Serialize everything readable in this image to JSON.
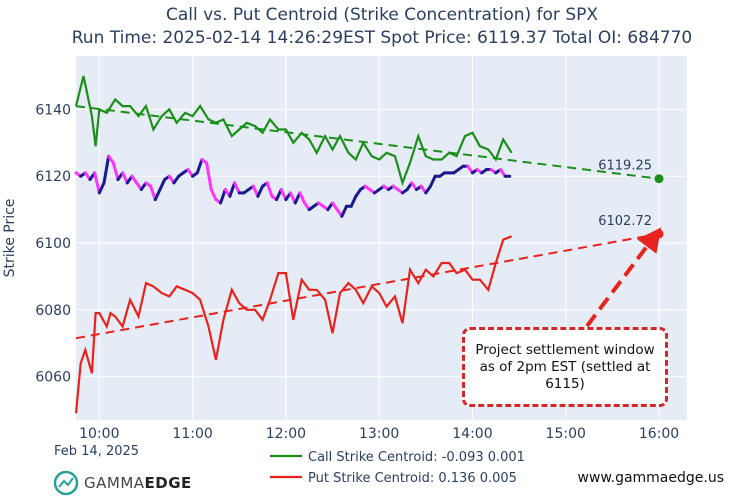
{
  "chart_data": {
    "type": "line",
    "title_line1": "Call vs. Put Centroid (Strike Concentration) for SPX",
    "title_line2": "Run Time: 2025-02-14 14:26:29EST Spot Price: 6119.37 Total OI: 684770",
    "ylabel": "Strike Price",
    "date_label": "Feb 14, 2025",
    "xlim": [
      9.75,
      16.3
    ],
    "ylim": [
      6047,
      6156
    ],
    "x_ticks": [
      10,
      11,
      12,
      13,
      14,
      15,
      16
    ],
    "x_tick_labels": [
      "10:00",
      "11:00",
      "12:00",
      "13:00",
      "14:00",
      "15:00",
      "16:00"
    ],
    "y_ticks": [
      6060,
      6080,
      6100,
      6120,
      6140
    ],
    "y_tick_labels": [
      "6060",
      "6080",
      "6100",
      "6120",
      "6140"
    ],
    "series": [
      {
        "name": "Call Strike Centroid: -0.093 0.001",
        "color": "#1a8f1a",
        "x": [
          9.75,
          9.83,
          9.92,
          9.96,
          10.0,
          10.08,
          10.17,
          10.25,
          10.33,
          10.42,
          10.5,
          10.58,
          10.67,
          10.75,
          10.83,
          10.92,
          11.0,
          11.08,
          11.17,
          11.25,
          11.33,
          11.42,
          11.5,
          11.58,
          11.67,
          11.75,
          11.83,
          11.92,
          12.0,
          12.08,
          12.17,
          12.25,
          12.33,
          12.42,
          12.5,
          12.58,
          12.67,
          12.75,
          12.83,
          12.92,
          13.0,
          13.08,
          13.17,
          13.25,
          13.33,
          13.42,
          13.5,
          13.58,
          13.67,
          13.75,
          13.83,
          13.92,
          14.0,
          14.08,
          14.17,
          14.25,
          14.33,
          14.42
        ],
        "values": [
          6141,
          6150,
          6138,
          6129,
          6140,
          6139,
          6143,
          6141,
          6141,
          6138,
          6141,
          6134,
          6138,
          6140,
          6136,
          6139,
          6138,
          6141,
          6137,
          6136,
          6137,
          6132,
          6134,
          6136,
          6135,
          6133,
          6137,
          6134,
          6134,
          6130,
          6133,
          6131,
          6127,
          6132,
          6128,
          6132,
          6127,
          6125,
          6130,
          6126,
          6125,
          6127,
          6126,
          6118,
          6124,
          6132,
          6126,
          6125,
          6125,
          6127,
          6126,
          6132,
          6133,
          6129,
          6128,
          6125,
          6131,
          6127
        ]
      },
      {
        "name": "Put Strike Centroid: 0.136 0.005",
        "color": "#e8221c",
        "x": [
          9.75,
          9.8,
          9.85,
          9.92,
          9.96,
          10.0,
          10.08,
          10.12,
          10.17,
          10.25,
          10.33,
          10.42,
          10.5,
          10.58,
          10.67,
          10.75,
          10.83,
          10.92,
          11.0,
          11.08,
          11.17,
          11.25,
          11.33,
          11.42,
          11.5,
          11.58,
          11.67,
          11.75,
          11.83,
          11.92,
          12.0,
          12.08,
          12.17,
          12.25,
          12.33,
          12.42,
          12.5,
          12.58,
          12.67,
          12.75,
          12.83,
          12.92,
          13.0,
          13.08,
          13.17,
          13.25,
          13.33,
          13.42,
          13.5,
          13.58,
          13.67,
          13.75,
          13.83,
          13.92,
          14.0,
          14.08,
          14.17,
          14.25,
          14.33,
          14.42
        ],
        "values": [
          6049,
          6064,
          6068,
          6061,
          6079,
          6079,
          6075,
          6079,
          6078,
          6075,
          6083,
          6078,
          6088,
          6087,
          6085,
          6084,
          6087,
          6086,
          6085,
          6083,
          6075,
          6065,
          6077,
          6086,
          6082,
          6080,
          6080,
          6077,
          6083,
          6091,
          6091,
          6077,
          6089,
          6086,
          6086,
          6083,
          6073,
          6085,
          6088,
          6086,
          6082,
          6087,
          6085,
          6081,
          6084,
          6076,
          6092,
          6088,
          6092,
          6090,
          6094,
          6094,
          6091,
          6092,
          6089,
          6089,
          6086,
          6094,
          6101,
          6102
        ]
      },
      {
        "name": "Spot Price",
        "colors": [
          "#1a1a8c",
          "#ff33ff"
        ],
        "x": [
          9.75,
          9.8,
          9.85,
          9.9,
          9.95,
          10.0,
          10.05,
          10.1,
          10.15,
          10.2,
          10.25,
          10.3,
          10.35,
          10.4,
          10.45,
          10.5,
          10.55,
          10.6,
          10.65,
          10.7,
          10.75,
          10.8,
          10.85,
          10.9,
          10.95,
          11.0,
          11.05,
          11.1,
          11.15,
          11.2,
          11.25,
          11.3,
          11.35,
          11.4,
          11.45,
          11.5,
          11.55,
          11.6,
          11.65,
          11.7,
          11.75,
          11.8,
          11.85,
          11.9,
          11.95,
          12.0,
          12.05,
          12.1,
          12.15,
          12.2,
          12.25,
          12.3,
          12.35,
          12.4,
          12.45,
          12.5,
          12.55,
          12.6,
          12.65,
          12.7,
          12.75,
          12.8,
          12.85,
          12.9,
          12.95,
          13.0,
          13.05,
          13.1,
          13.15,
          13.2,
          13.25,
          13.3,
          13.35,
          13.4,
          13.45,
          13.5,
          13.55,
          13.6,
          13.65,
          13.7,
          13.75,
          13.8,
          13.85,
          13.9,
          13.95,
          14.0,
          14.05,
          14.1,
          14.15,
          14.2,
          14.25,
          14.3,
          14.35,
          14.4
        ],
        "values": [
          6121,
          6120,
          6121,
          6119,
          6121,
          6115,
          6118,
          6126,
          6124,
          6119,
          6121,
          6118,
          6120,
          6118,
          6116,
          6118,
          6117,
          6113,
          6116,
          6119,
          6120,
          6118,
          6120,
          6121,
          6122,
          6120,
          6121,
          6125,
          6124,
          6116,
          6113,
          6112,
          6116,
          6114,
          6118,
          6115,
          6115,
          6116,
          6117,
          6114,
          6117,
          6118,
          6114,
          6113,
          6116,
          6113,
          6115,
          6112,
          6115,
          6112,
          6110,
          6111,
          6112,
          6111,
          6110,
          6112,
          6110,
          6108,
          6111,
          6111,
          6114,
          6116,
          6117,
          6116,
          6115,
          6116,
          6117,
          6116,
          6117,
          6116,
          6115,
          6116,
          6118,
          6116,
          6117,
          6115,
          6117,
          6120,
          6120,
          6121,
          6121,
          6121,
          6122,
          6123,
          6123,
          6121,
          6122,
          6121,
          6122,
          6122,
          6121,
          6122,
          6120,
          6120
        ]
      }
    ],
    "trendlines": [
      {
        "color": "#1a8f1a",
        "x": [
          9.75,
          16.0
        ],
        "values": [
          6141,
          6119.25
        ]
      },
      {
        "color": "#e8221c",
        "x": [
          9.75,
          16.0
        ],
        "values": [
          6071.5,
          6102.72
        ]
      }
    ],
    "end_points": [
      {
        "label": "6119.25",
        "x": 16.0,
        "value": 6119.25,
        "color": "#1a8f1a"
      },
      {
        "label": "6102.72",
        "x": 16.0,
        "value": 6102.72,
        "color": "#e8221c"
      }
    ],
    "legend": [
      {
        "label": "Call Strike Centroid: -0.093 0.001",
        "color": "#1a8f1a"
      },
      {
        "label": "Put Strike Centroid: 0.136 0.005",
        "color": "#e8221c"
      }
    ],
    "annotation": {
      "text": "Project settlement window\nas of 2pm EST (settled at\n6115)",
      "color": "#d62728"
    }
  },
  "brand": {
    "logo_name": "GAMMA",
    "logo_name_bold": "EDGE",
    "url": "www.gammaedge.us"
  }
}
